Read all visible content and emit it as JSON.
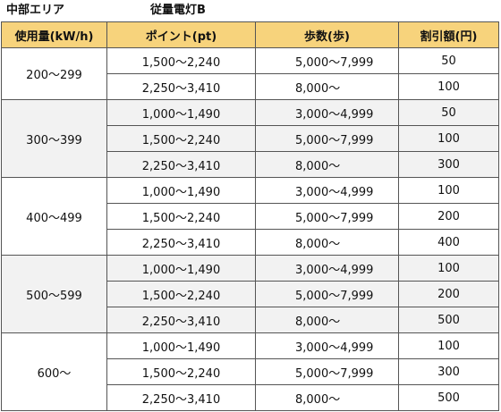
{
  "region_title": "中部エリア",
  "plan_title": "従量電灯B",
  "headers": {
    "usage": "使用量(kW/h)",
    "points": "ポイント(pt)",
    "steps": "歩数(歩)",
    "discount": "割引額(円)"
  },
  "groups": [
    {
      "usage": "200～299",
      "band": "white",
      "rows": [
        {
          "points": "1,500～2,240",
          "steps": "5,000～7,999",
          "discount": "50"
        },
        {
          "points": "2,250～3,410",
          "steps": "8,000～",
          "discount": "100"
        }
      ]
    },
    {
      "usage": "300～399",
      "band": "grey",
      "rows": [
        {
          "points": "1,000～1,490",
          "steps": "3,000～4,999",
          "discount": "50"
        },
        {
          "points": "1,500～2,240",
          "steps": "5,000～7,999",
          "discount": "100"
        },
        {
          "points": "2,250～3,410",
          "steps": "8,000～",
          "discount": "300"
        }
      ]
    },
    {
      "usage": "400～499",
      "band": "white",
      "rows": [
        {
          "points": "1,000～1,490",
          "steps": "3,000～4,999",
          "discount": "100"
        },
        {
          "points": "1,500～2,240",
          "steps": "5,000～7,999",
          "discount": "200"
        },
        {
          "points": "2,250～3,410",
          "steps": "8,000～",
          "discount": "400"
        }
      ]
    },
    {
      "usage": "500～599",
      "band": "grey",
      "rows": [
        {
          "points": "1,000～1,490",
          "steps": "3,000～4,999",
          "discount": "100"
        },
        {
          "points": "1,500～2,240",
          "steps": "5,000～7,999",
          "discount": "200"
        },
        {
          "points": "2,250～3,410",
          "steps": "8,000～",
          "discount": "500"
        }
      ]
    },
    {
      "usage": "600～",
      "band": "white",
      "rows": [
        {
          "points": "1,000～1,490",
          "steps": "3,000～4,999",
          "discount": "100"
        },
        {
          "points": "1,500～2,240",
          "steps": "5,000～7,999",
          "discount": "300"
        },
        {
          "points": "2,250～3,410",
          "steps": "8,000～",
          "discount": "500"
        }
      ]
    }
  ]
}
